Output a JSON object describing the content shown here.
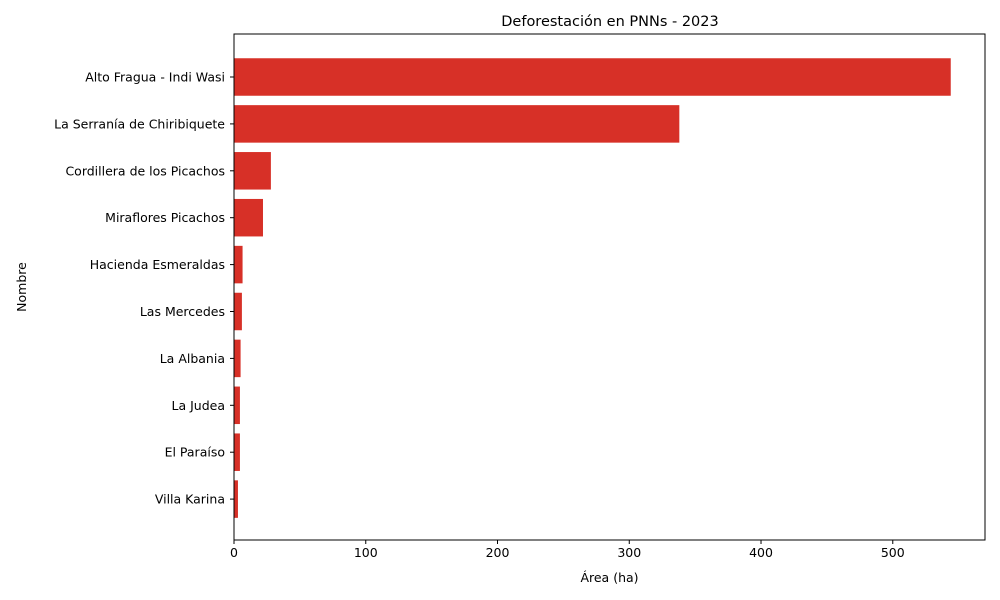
{
  "chart_data": {
    "type": "bar",
    "orientation": "horizontal",
    "title": "Deforestación en PNNs - 2023",
    "xlabel": "Área (ha)",
    "ylabel": "Nombre",
    "categories": [
      "Alto Fragua - Indi Wasi",
      "La Serranía de Chiribiquete",
      "Cordillera de los Picachos",
      "Miraflores Picachos",
      "Hacienda Esmeraldas",
      "Las Mercedes",
      "La Albania",
      "La Judea",
      "El Paraíso",
      "Villa Karina"
    ],
    "values": [
      544,
      338,
      28,
      22,
      6.5,
      6,
      5,
      4.5,
      4.5,
      3
    ],
    "xlim": [
      0,
      570
    ],
    "xticks": [
      0,
      100,
      200,
      300,
      400,
      500
    ],
    "grid": false,
    "bar_color": "#d73027"
  }
}
